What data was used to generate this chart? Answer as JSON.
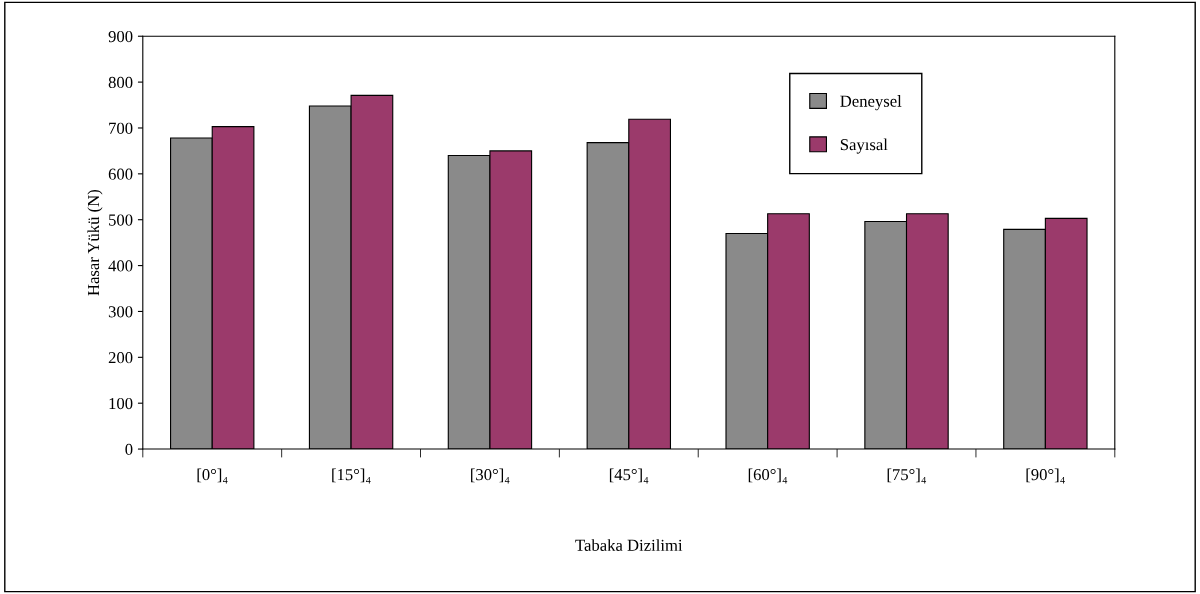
{
  "chart_data": {
    "type": "bar",
    "xlabel": "Tabaka Dizilimi",
    "ylabel": "Hasar Yükü (N)",
    "categories": [
      "[0°]₄",
      "[15°]₄",
      "[30°]₄",
      "[45°]₄",
      "[60°]₄",
      "[75°]₄",
      "[90°]₄"
    ],
    "series": [
      {
        "name": "Deneysel",
        "color": "#8a8a8a",
        "values": [
          678,
          748,
          640,
          668,
          470,
          496,
          479
        ]
      },
      {
        "name": "Sayısal",
        "color": "#9b3a6b",
        "values": [
          703,
          771,
          650,
          719,
          513,
          513,
          503
        ]
      }
    ],
    "ylim": [
      0,
      900
    ],
    "yticks": [
      0,
      100,
      200,
      300,
      400,
      500,
      600,
      700,
      800,
      900
    ],
    "grid": false,
    "legend": "top right"
  }
}
